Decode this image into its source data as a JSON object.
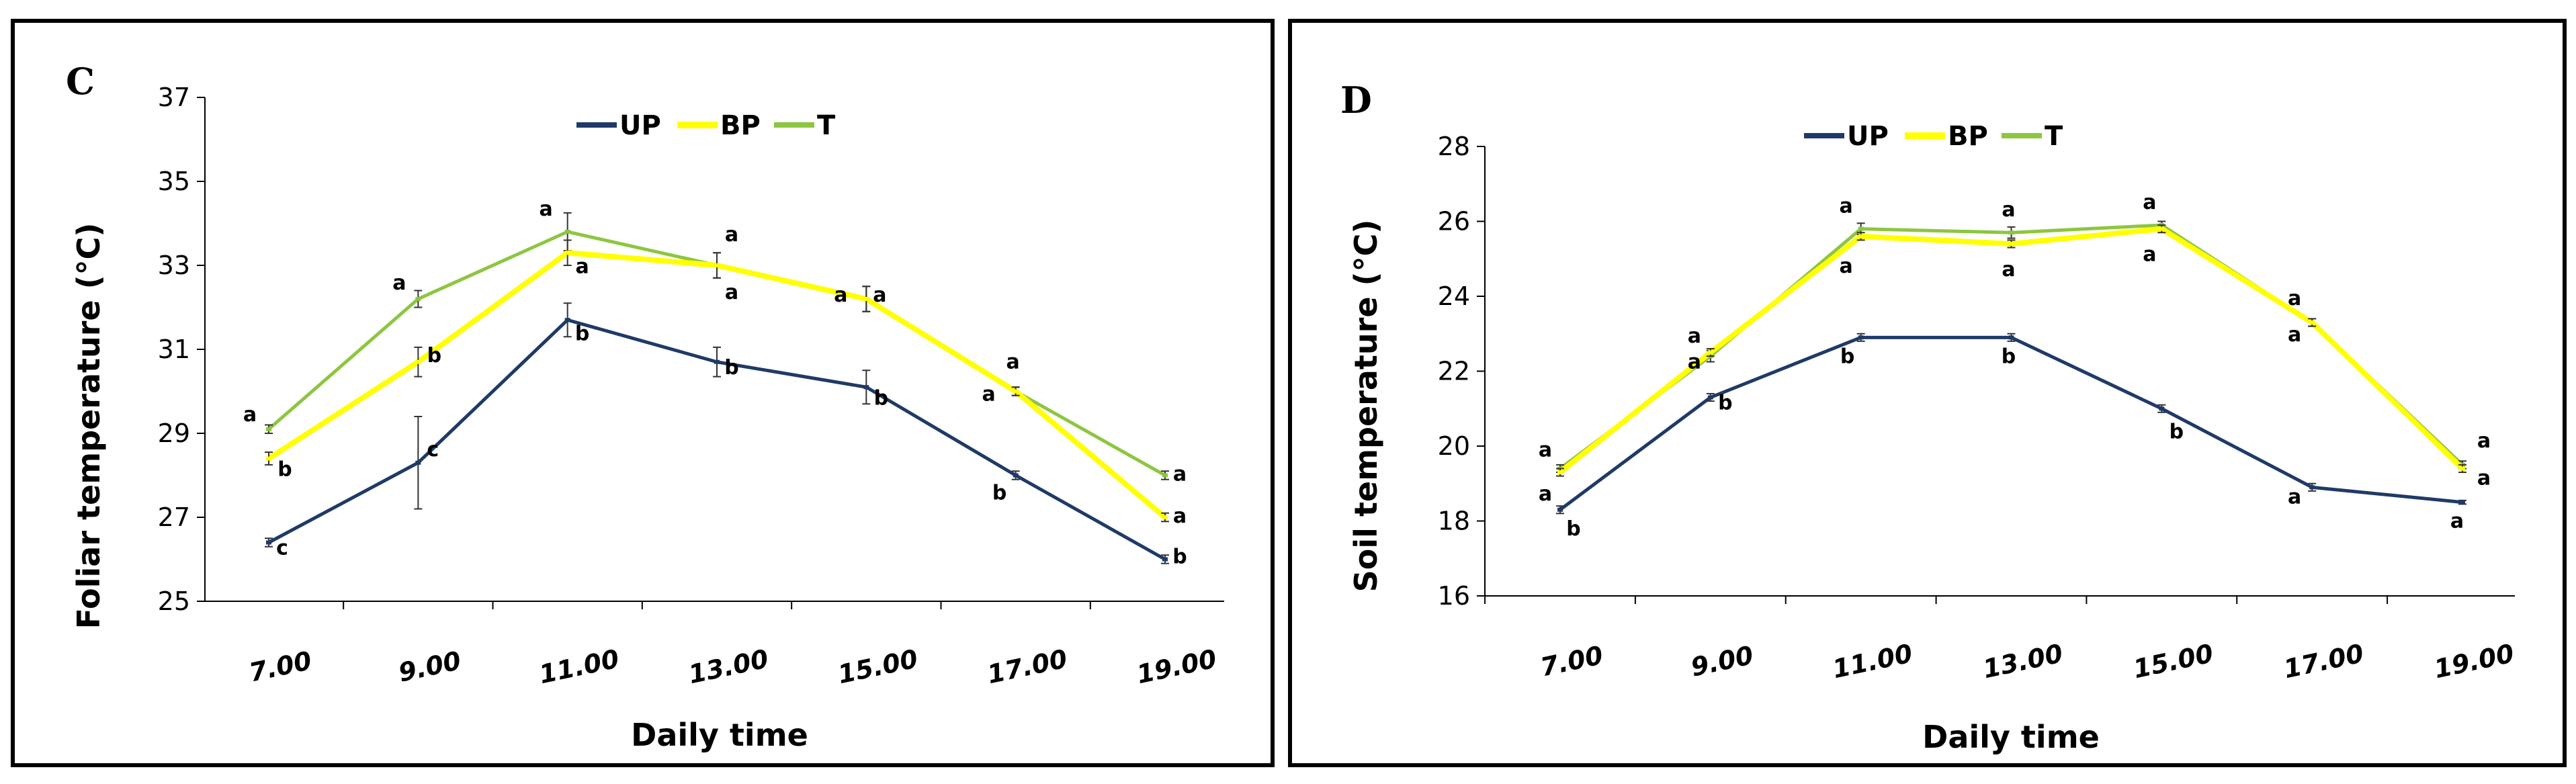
{
  "chart_data": [
    {
      "type": "line",
      "panel_label": "C",
      "title": "",
      "xlabel": "Daily time",
      "ylabel": "Foliar temperature (°C)",
      "categories": [
        "7.00",
        "9.00",
        "11.00",
        "13.00",
        "15.00",
        "17.00",
        "19.00"
      ],
      "ylim": [
        25,
        37
      ],
      "yticks": [
        "25",
        "27",
        "29",
        "31",
        "33",
        "35",
        "37"
      ],
      "legend_position": "top-center",
      "colors": {
        "UP": "#1f3a68",
        "BP": "#ffff00",
        "T": "#8dc63f"
      },
      "series": [
        {
          "name": "UP",
          "values": [
            26.4,
            28.3,
            31.7,
            30.7,
            30.1,
            28.0,
            26.0
          ],
          "errors": [
            0.1,
            1.1,
            0.4,
            0.35,
            0.4,
            0.1,
            0.1
          ],
          "labels": [
            "c",
            "c",
            "b",
            "b",
            "b",
            "b",
            "b"
          ]
        },
        {
          "name": "BP",
          "values": [
            28.4,
            30.7,
            33.3,
            33.0,
            32.2,
            30.0,
            27.0
          ],
          "errors": [
            0.15,
            0.35,
            0.3,
            0.3,
            0.3,
            0.1,
            0.1
          ],
          "labels": [
            "b",
            "b",
            "a",
            "a",
            "a",
            "a",
            "a"
          ]
        },
        {
          "name": "T",
          "values": [
            29.1,
            32.2,
            33.8,
            33.0,
            32.2,
            30.0,
            28.0
          ],
          "errors": [
            0.1,
            0.2,
            0.45,
            0.3,
            0.3,
            0.1,
            0.1
          ],
          "labels": [
            "a",
            "a",
            "a",
            "a",
            "a",
            "a",
            "a"
          ]
        }
      ]
    },
    {
      "type": "line",
      "panel_label": "D",
      "title": "",
      "xlabel": "Daily time",
      "ylabel": "Soil temperature (°C)",
      "categories": [
        "7.00",
        "9.00",
        "11.00",
        "13.00",
        "15.00",
        "17.00",
        "19.00"
      ],
      "ylim": [
        16,
        28
      ],
      "yticks": [
        "16",
        "18",
        "20",
        "22",
        "24",
        "26",
        "28"
      ],
      "legend_position": "top-center",
      "colors": {
        "UP": "#1f3a68",
        "BP": "#ffff00",
        "T": "#8dc63f"
      },
      "series": [
        {
          "name": "UP",
          "values": [
            18.3,
            21.3,
            22.9,
            22.9,
            21.0,
            18.9,
            18.5
          ],
          "errors": [
            0.1,
            0.1,
            0.1,
            0.1,
            0.1,
            0.1,
            0.05
          ],
          "labels": [
            "b",
            "b",
            "b",
            "b",
            "b",
            "a",
            "a"
          ]
        },
        {
          "name": "BP",
          "values": [
            19.3,
            22.5,
            25.6,
            25.4,
            25.8,
            23.3,
            19.4
          ],
          "errors": [
            0.1,
            0.1,
            0.1,
            0.1,
            0.1,
            0.1,
            0.1
          ],
          "labels": [
            "a",
            "a",
            "a",
            "a",
            "a",
            "a",
            "a"
          ]
        },
        {
          "name": "T",
          "values": [
            19.4,
            22.4,
            25.8,
            25.7,
            25.9,
            23.3,
            19.5
          ],
          "errors": [
            0.1,
            0.15,
            0.15,
            0.15,
            0.1,
            0.1,
            0.1
          ],
          "labels": [
            "a",
            "a",
            "a",
            "a",
            "a",
            "a",
            "a"
          ]
        }
      ]
    }
  ]
}
